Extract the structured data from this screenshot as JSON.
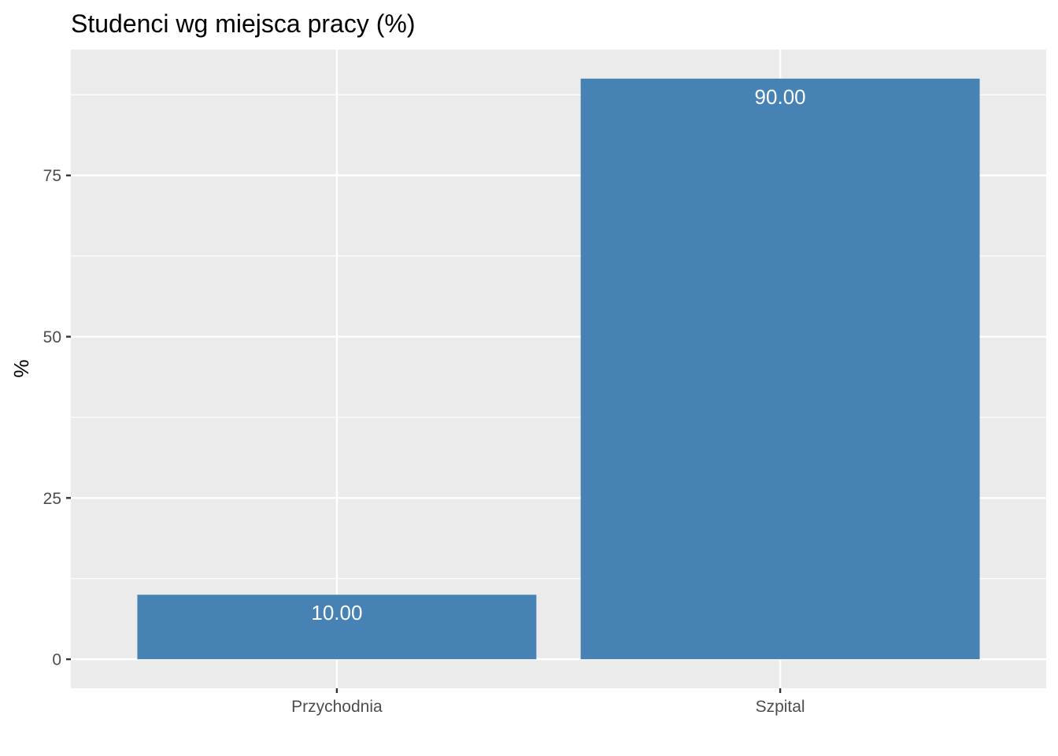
{
  "chart_data": {
    "type": "bar",
    "title": "Studenci wg miejsca pracy (%)",
    "xlabel": "",
    "ylabel": "%",
    "categories": [
      "Przychodnia",
      "Szpital"
    ],
    "values": [
      10,
      90
    ],
    "value_labels": [
      "10.00",
      "90.00"
    ],
    "ylim": [
      -4.5,
      94.5
    ],
    "y_ticks": [
      0,
      25,
      50,
      75
    ],
    "y_tick_labels": [
      "0",
      "25",
      "50",
      "75"
    ],
    "grid": true,
    "legend": "none",
    "colors": {
      "bar": "#4682b4",
      "panel": "#ebebeb",
      "grid": "#ffffff"
    }
  }
}
